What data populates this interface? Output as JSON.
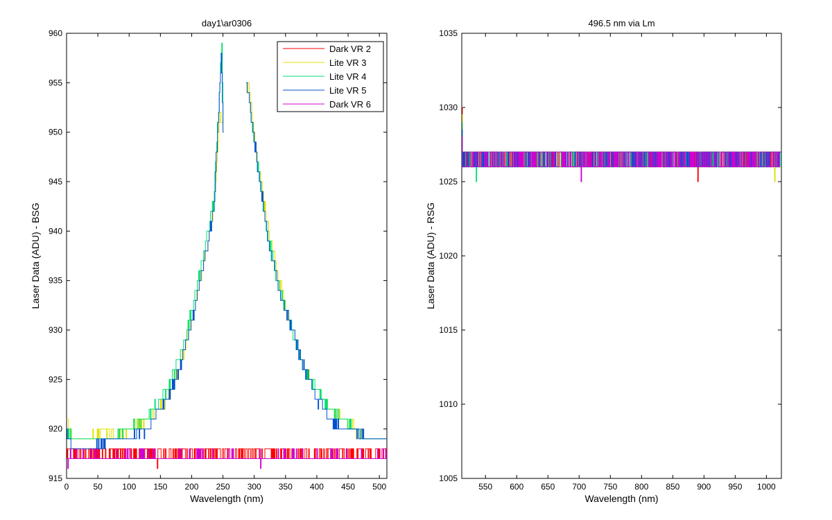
{
  "chart_data": [
    {
      "type": "line",
      "title": "day1\\ar0306",
      "xlabel": "Wavelength (nm)",
      "ylabel": "Laser Data (ADU) - BSG",
      "xlim": [
        0,
        512
      ],
      "ylim": [
        915,
        960
      ],
      "xticks": [
        0,
        50,
        100,
        150,
        200,
        250,
        300,
        350,
        400,
        450,
        500
      ],
      "yticks": [
        915,
        920,
        925,
        930,
        935,
        940,
        945,
        950,
        955,
        960
      ],
      "legend_position": "top-right",
      "series": [
        {
          "name": "Dark VR 2",
          "color": "#ff0000",
          "kind": "dark",
          "x": [
            0,
            5,
            20,
            60,
            100,
            140,
            145,
            150,
            200,
            260,
            300,
            310,
            350,
            400,
            450,
            500,
            512
          ],
          "y": [
            918,
            917,
            918,
            917,
            918,
            917,
            916,
            918,
            917,
            918,
            917,
            918,
            917,
            918,
            917,
            918,
            917
          ]
        },
        {
          "name": "Lite VR 3",
          "color": "#e0e000",
          "kind": "lite",
          "x": [
            0,
            10,
            40,
            60,
            80,
            100,
            130,
            160,
            180,
            200,
            220,
            235,
            245,
            250,
            290,
            300,
            320,
            340,
            360,
            380,
            400,
            420,
            440,
            460,
            480,
            500,
            512
          ],
          "y": [
            921,
            919,
            919,
            920,
            919,
            920,
            921,
            923,
            926,
            931,
            937,
            942,
            952,
            950,
            955,
            950,
            941,
            935,
            930,
            926,
            924,
            922,
            921,
            920,
            919,
            919,
            919
          ]
        },
        {
          "name": "Lite VR 4",
          "color": "#00e070",
          "kind": "lite",
          "x": [
            0,
            10,
            40,
            70,
            100,
            130,
            160,
            180,
            200,
            220,
            235,
            248,
            250,
            288,
            300,
            320,
            340,
            360,
            380,
            400,
            420,
            440,
            460,
            480,
            500,
            512
          ],
          "y": [
            920,
            919,
            919,
            919,
            920,
            921,
            924,
            927,
            932,
            938,
            943,
            959,
            951,
            955,
            949,
            940,
            934,
            930,
            926,
            924,
            922,
            921,
            920,
            919,
            919,
            919
          ]
        },
        {
          "name": "Lite VR 5",
          "color": "#0050d0",
          "kind": "lite",
          "x": [
            0,
            10,
            40,
            70,
            100,
            130,
            160,
            180,
            200,
            220,
            235,
            247,
            250,
            288,
            300,
            320,
            340,
            360,
            380,
            400,
            420,
            440,
            460,
            480,
            500,
            512
          ],
          "y": [
            920,
            918,
            918,
            919,
            919,
            920,
            923,
            926,
            931,
            937,
            942,
            958,
            950,
            955,
            949,
            940,
            934,
            930,
            926,
            923,
            921,
            920,
            920,
            919,
            919,
            919
          ]
        },
        {
          "name": "Dark VR 6",
          "color": "#d000d0",
          "kind": "dark",
          "x": [
            0,
            10,
            50,
            100,
            150,
            200,
            250,
            300,
            350,
            400,
            450,
            500,
            512
          ],
          "y": [
            917,
            917,
            917,
            917,
            917,
            917,
            917,
            917,
            917,
            917,
            917,
            917,
            917
          ]
        }
      ]
    },
    {
      "type": "line",
      "title": "496.5 nm via Lm",
      "xlabel": "Wavelength (nm)",
      "ylabel": "Laser Data (ADU) - RSG",
      "xlim": [
        512,
        1024
      ],
      "ylim": [
        1005,
        1035
      ],
      "xticks": [
        550,
        600,
        650,
        700,
        750,
        800,
        850,
        900,
        950,
        1000
      ],
      "yticks": [
        1005,
        1010,
        1015,
        1020,
        1025,
        1030,
        1035
      ],
      "series": [
        {
          "name": "Dark VR 2",
          "color": "#ff0000",
          "x": [
            512,
            890,
            1024
          ],
          "y": [
            1026.5,
            1025,
            1026.5
          ]
        },
        {
          "name": "Lite VR 3",
          "color": "#e0e000",
          "x": [
            512,
            1013,
            1024
          ],
          "y": [
            1026.5,
            1025,
            1026.5
          ]
        },
        {
          "name": "Lite VR 4",
          "color": "#00e070",
          "x": [
            512,
            535,
            1024
          ],
          "y": [
            1026.5,
            1025,
            1026.5
          ]
        },
        {
          "name": "Lite VR 5",
          "color": "#0050d0",
          "x": [
            512,
            1024
          ],
          "y": [
            1026.5,
            1026.5
          ]
        },
        {
          "name": "Dark VR 6",
          "color": "#d000d0",
          "x": [
            512,
            703,
            1024
          ],
          "y": [
            1026.5,
            1025,
            1026.5
          ]
        }
      ],
      "start_spike": {
        "x": 512,
        "y": 1030
      }
    }
  ]
}
